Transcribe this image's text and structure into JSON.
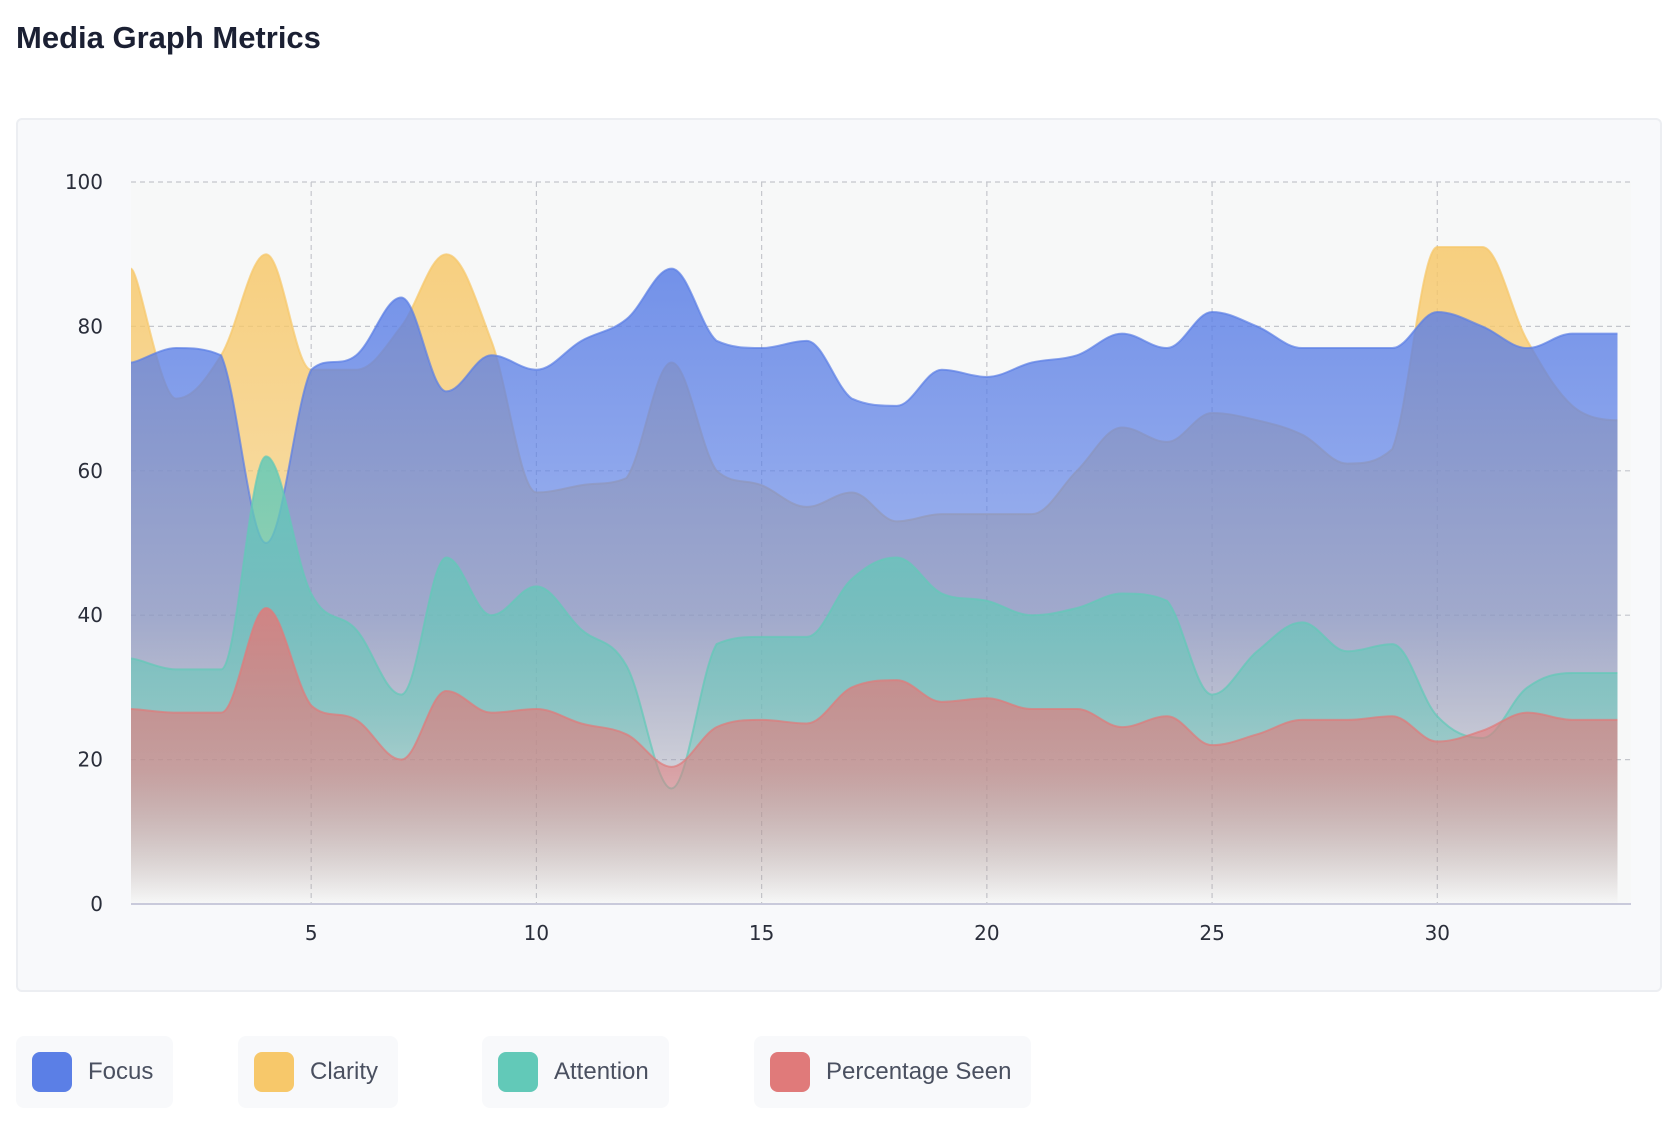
{
  "page": {
    "title": "Media Graph Metrics"
  },
  "legend": [
    {
      "label": "Focus",
      "color": "#5b7fe6"
    },
    {
      "label": "Clarity",
      "color": "#f7c86a"
    },
    {
      "label": "Attention",
      "color": "#62c9b8"
    },
    {
      "label": "Percentage Seen",
      "color": "#e07a7a"
    }
  ],
  "chart_data": {
    "type": "area",
    "title": "Media Graph Metrics",
    "xlabel": "",
    "ylabel": "",
    "x": [
      1,
      2,
      3,
      4,
      5,
      6,
      7,
      8,
      9,
      10,
      11,
      12,
      13,
      14,
      15,
      16,
      17,
      18,
      19,
      20,
      21,
      22,
      23,
      24,
      25,
      26,
      27,
      28,
      29,
      30,
      31,
      32,
      33,
      34
    ],
    "xlim": [
      1,
      34.3
    ],
    "ylim": [
      0,
      100
    ],
    "xticks": [
      5,
      10,
      15,
      20,
      25,
      30
    ],
    "yticks": [
      0,
      20,
      40,
      60,
      80,
      100
    ],
    "grid": true,
    "series": [
      {
        "name": "Clarity",
        "color": "#f7c86a",
        "values": [
          88,
          70,
          76,
          90,
          74,
          74,
          80,
          90,
          78,
          57,
          58,
          59,
          75,
          60,
          58,
          55,
          57,
          53,
          54,
          54,
          54,
          60,
          66,
          64,
          68,
          67,
          65,
          61,
          63,
          91,
          91,
          78,
          69,
          67
        ]
      },
      {
        "name": "Focus",
        "color": "#5b7fe6",
        "values": [
          75,
          77,
          76,
          50,
          74,
          76,
          84,
          71,
          76,
          74,
          78,
          81,
          88,
          78,
          77,
          78,
          70,
          69,
          74,
          73,
          75,
          76,
          79,
          77,
          82,
          80,
          77,
          77,
          77,
          82,
          80,
          77,
          79,
          79
        ]
      },
      {
        "name": "Attention",
        "color": "#62c9b8",
        "values": [
          34,
          32.5,
          32.5,
          62,
          43,
          38,
          29,
          48,
          40,
          44,
          38,
          33,
          16,
          36,
          37,
          37,
          45,
          48,
          43,
          42,
          40,
          41,
          43,
          42,
          29,
          35,
          39,
          35,
          36,
          26,
          23,
          30,
          32,
          32
        ]
      },
      {
        "name": "Percentage Seen",
        "color": "#e07a7a",
        "values": [
          27,
          26.5,
          26.5,
          41,
          27.5,
          25.5,
          20,
          29.5,
          26.5,
          27,
          25,
          23.5,
          19,
          24.5,
          25.5,
          25,
          30,
          31,
          28,
          28.5,
          27,
          27,
          24.5,
          26,
          22,
          23.5,
          25.5,
          25.5,
          26,
          22.5,
          24,
          26.5,
          25.5,
          25.5
        ]
      }
    ]
  }
}
